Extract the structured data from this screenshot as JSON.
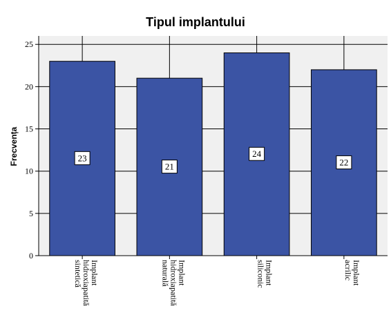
{
  "chart_data": {
    "type": "bar",
    "title": "Tipul implantului",
    "ylabel": "Frecvența",
    "xlabel": "",
    "categories": [
      [
        "Implant",
        "hidroxiapatită",
        "sintetică"
      ],
      [
        "Implant",
        "hidroxiapatită",
        "naturală"
      ],
      [
        "Implant",
        "siliconic"
      ],
      [
        "Implant",
        "acrilic"
      ]
    ],
    "values": [
      23,
      21,
      24,
      22
    ],
    "data_labels": [
      "23",
      "21",
      "24",
      "22"
    ],
    "ylim": [
      0,
      26
    ],
    "yticks": [
      0,
      5,
      10,
      15,
      20,
      25
    ],
    "ytick_labels": [
      "0",
      "5",
      "10",
      "15",
      "20",
      "25"
    ],
    "grid": true,
    "colors": {
      "bar": "#3b54a4",
      "bar_edge": "#000000",
      "plot_bg": "#f0f0f0",
      "grid": "#000000"
    }
  }
}
